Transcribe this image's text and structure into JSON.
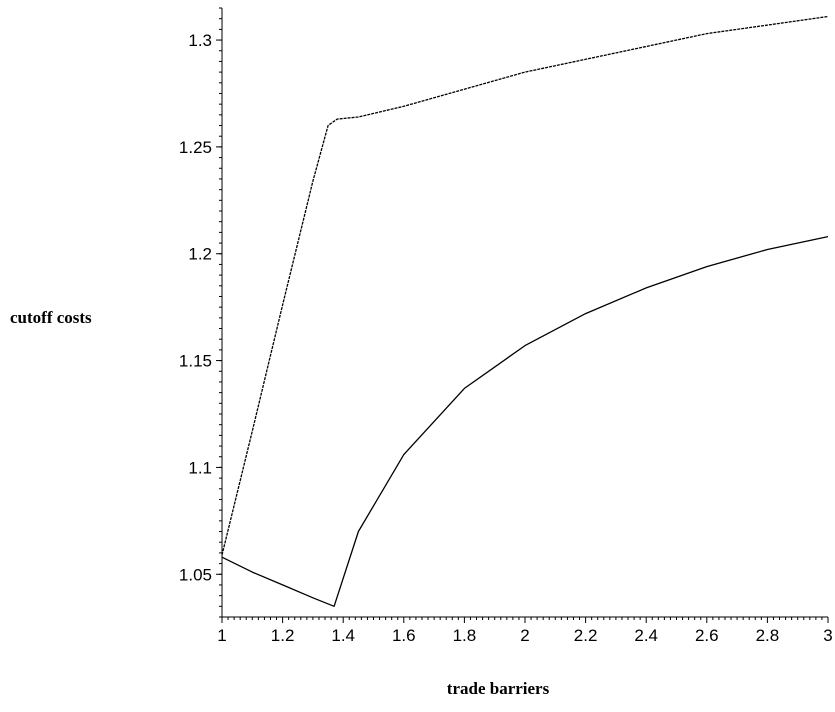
{
  "chart_data": {
    "type": "line",
    "xlabel": "trade barriers",
    "ylabel": "cutoff costs",
    "xlim": [
      1,
      3
    ],
    "ylim": [
      1.03,
      1.315
    ],
    "xticks": [
      1,
      1.2,
      1.4,
      1.6,
      1.8,
      2,
      2.2,
      2.4,
      2.6,
      2.8,
      3
    ],
    "xtick_labels": [
      "1",
      "1.2",
      "1.4",
      "1.6",
      "1.8",
      "2",
      "2.2",
      "2.4",
      "2.6",
      "2.8",
      "3"
    ],
    "yticks": [
      1.05,
      1.1,
      1.15,
      1.2,
      1.25,
      1.3
    ],
    "ytick_labels": [
      "1.05",
      "1.1",
      "1.15",
      "1.2",
      "1.25",
      "1.3"
    ],
    "grid": false,
    "legend": false,
    "series": [
      {
        "style": "dashed",
        "color": "#000000",
        "points": [
          [
            1.0,
            1.059
          ],
          [
            1.1,
            1.117
          ],
          [
            1.2,
            1.176
          ],
          [
            1.3,
            1.234
          ],
          [
            1.35,
            1.26
          ],
          [
            1.38,
            1.263
          ],
          [
            1.45,
            1.264
          ],
          [
            1.6,
            1.269
          ],
          [
            1.8,
            1.277
          ],
          [
            2.0,
            1.285
          ],
          [
            2.2,
            1.291
          ],
          [
            2.4,
            1.297
          ],
          [
            2.6,
            1.303
          ],
          [
            2.8,
            1.307
          ],
          [
            3.0,
            1.311
          ]
        ]
      },
      {
        "style": "solid",
        "color": "#000000",
        "points": [
          [
            1.0,
            1.058
          ],
          [
            1.1,
            1.051
          ],
          [
            1.2,
            1.045
          ],
          [
            1.3,
            1.039
          ],
          [
            1.37,
            1.035
          ],
          [
            1.45,
            1.07
          ],
          [
            1.6,
            1.106
          ],
          [
            1.8,
            1.137
          ],
          [
            2.0,
            1.157
          ],
          [
            2.2,
            1.172
          ],
          [
            2.4,
            1.184
          ],
          [
            2.6,
            1.194
          ],
          [
            2.8,
            1.202
          ],
          [
            3.0,
            1.208
          ]
        ]
      }
    ]
  }
}
